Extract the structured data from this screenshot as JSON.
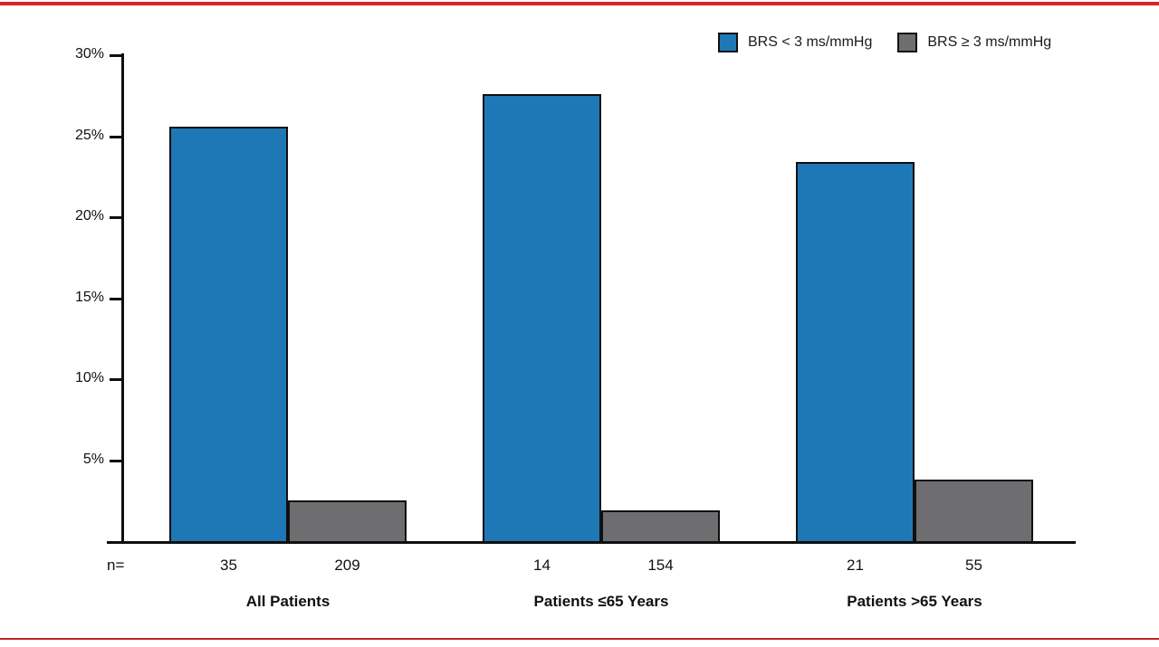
{
  "accent": {
    "top_rule_color": "#DD2027",
    "bottom_rule_color": "#C32128",
    "axis_color": "#0E0E0E"
  },
  "legend": {
    "items": [
      {
        "label": "BRS < 3 ms/mmHg",
        "color": "#1E78B6"
      },
      {
        "label": "BRS ≥ 3 ms/mmHg",
        "color": "#6E6E70"
      }
    ]
  },
  "chart_data": {
    "type": "bar",
    "title": "",
    "xlabel": "",
    "ylabel": "",
    "ylim": [
      0,
      30
    ],
    "yticks": [
      5,
      10,
      15,
      20,
      25,
      30
    ],
    "ytick_labels": [
      "5%",
      "10%",
      "15%",
      "20%",
      "25%",
      "30%"
    ],
    "grid": false,
    "legend_position": "top-right",
    "n_row_label": "n=",
    "categories": [
      "All Patients",
      "Patients ≤65 Years",
      "Patients >65 Years"
    ],
    "series": [
      {
        "name": "BRS < 3 ms/mmHg",
        "color": "#1E78B6",
        "values": [
          25.6,
          27.6,
          23.4
        ],
        "n": [
          35,
          14,
          21
        ]
      },
      {
        "name": "BRS ≥ 3 ms/mmHg",
        "color": "#6E6E70",
        "values": [
          2.5,
          1.9,
          3.8
        ],
        "n": [
          209,
          154,
          55
        ]
      }
    ]
  }
}
